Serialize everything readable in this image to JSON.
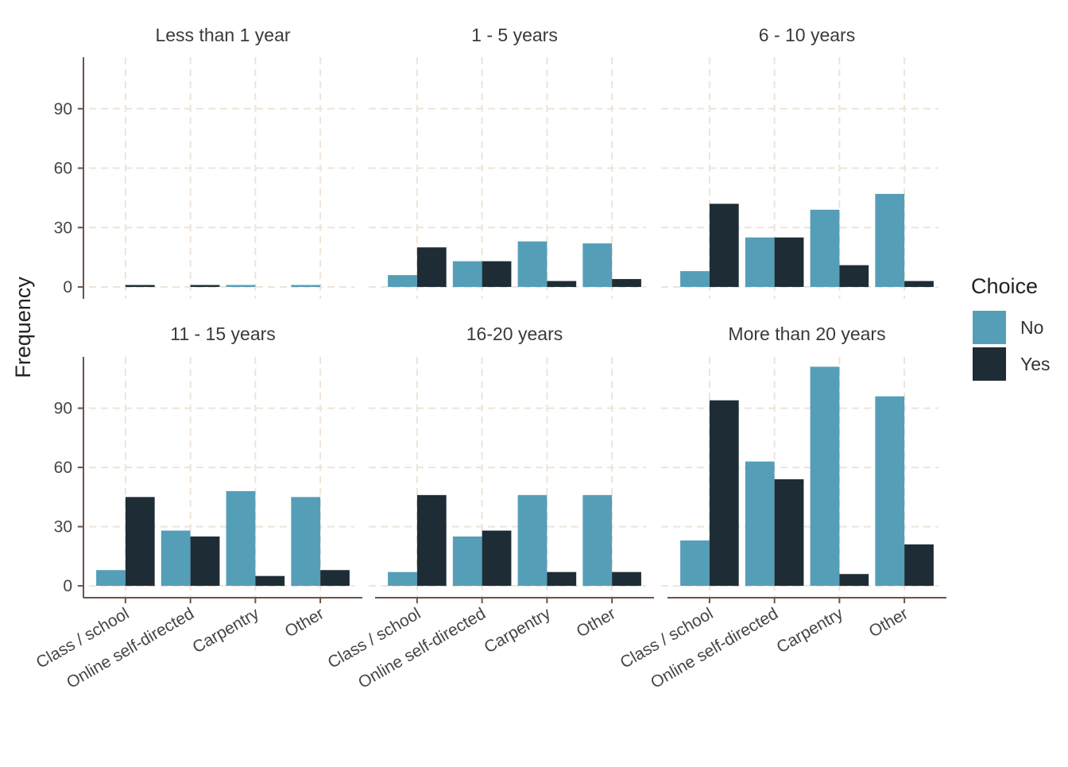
{
  "chart_data": {
    "type": "bar",
    "layout": "facet-grid",
    "categories": [
      "Class / school",
      "Online self-directed",
      "Carpentry",
      "Other"
    ],
    "ylabel": "Frequency",
    "xlabel": "",
    "ylim": [
      -6,
      116
    ],
    "yticks": [
      0,
      30,
      60,
      90
    ],
    "grid": true,
    "legend": {
      "title": "Choice",
      "position": "right",
      "items": [
        {
          "name": "No",
          "color": "#559EB8"
        },
        {
          "name": "Yes",
          "color": "#1E2D35"
        }
      ]
    },
    "facets": [
      {
        "title": "Less than 1 year",
        "series": [
          {
            "name": "No",
            "values": [
              0,
              0,
              1,
              1
            ]
          },
          {
            "name": "Yes",
            "values": [
              1,
              1,
              0,
              0
            ]
          }
        ]
      },
      {
        "title": "1 - 5 years",
        "series": [
          {
            "name": "No",
            "values": [
              6,
              13,
              23,
              22
            ]
          },
          {
            "name": "Yes",
            "values": [
              20,
              13,
              3,
              4
            ]
          }
        ]
      },
      {
        "title": "6 - 10 years",
        "series": [
          {
            "name": "No",
            "values": [
              8,
              25,
              39,
              47
            ]
          },
          {
            "name": "Yes",
            "values": [
              42,
              25,
              11,
              3
            ]
          }
        ]
      },
      {
        "title": "11 - 15 years",
        "series": [
          {
            "name": "No",
            "values": [
              8,
              28,
              48,
              45
            ]
          },
          {
            "name": "Yes",
            "values": [
              45,
              25,
              5,
              8
            ]
          }
        ]
      },
      {
        "title": "16-20 years",
        "series": [
          {
            "name": "No",
            "values": [
              7,
              25,
              46,
              46
            ]
          },
          {
            "name": "Yes",
            "values": [
              46,
              28,
              7,
              7
            ]
          }
        ]
      },
      {
        "title": "More than 20 years",
        "series": [
          {
            "name": "No",
            "values": [
              23,
              63,
              111,
              96
            ]
          },
          {
            "name": "Yes",
            "values": [
              94,
              54,
              6,
              21
            ]
          }
        ]
      }
    ]
  }
}
